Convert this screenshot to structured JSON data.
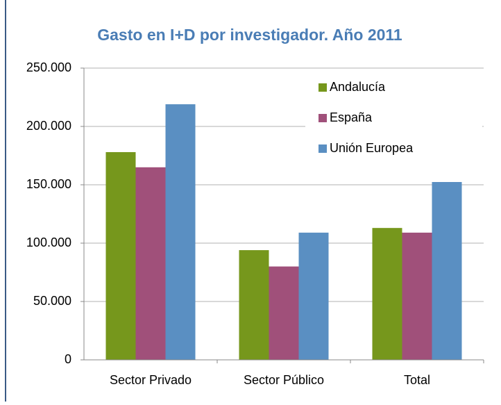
{
  "chart_data": {
    "type": "bar",
    "title": "Gasto en I+D por investigador. Año 2011",
    "categories": [
      "Sector Privado",
      "Sector Público",
      "Total"
    ],
    "series": [
      {
        "name": "Andalucía",
        "color": "#76971c",
        "values": [
          178000,
          94000,
          113000
        ]
      },
      {
        "name": "España",
        "color": "#a0507a",
        "values": [
          165000,
          80000,
          109000
        ]
      },
      {
        "name": "Unión Europea",
        "color": "#5a8fc2",
        "values": [
          219000,
          109000,
          160000
        ]
      }
    ],
    "ylim": [
      0,
      250000
    ],
    "yticks": [
      0,
      {
        "value": 50000,
        "label": "50.000"
      },
      {
        "value": 100000,
        "label": "100.000"
      },
      {
        "value": 150000,
        "label": "150.000"
      },
      {
        "value": 200000,
        "label": "200.000"
      },
      {
        "value": 250000,
        "label": "250.000"
      }
    ],
    "grid": true,
    "legend": "upper right"
  }
}
